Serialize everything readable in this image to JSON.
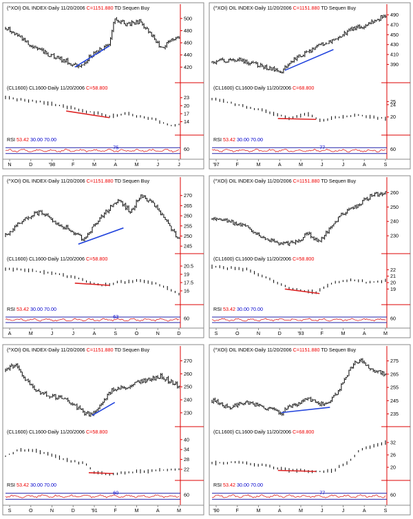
{
  "colors": {
    "price": "#000000",
    "trend_blue": "#2244dd",
    "trend_red": "#dd2222",
    "axis_red": "#dd0000",
    "rsi_line": "#dd2222",
    "rsi_band": "#2222aa",
    "value_red": "#ee0000",
    "rsi_num": "#0000cc",
    "frame": "#888888"
  },
  "chart_data": [
    {
      "type": "line",
      "panel": "top-left",
      "header": {
        "symbol": "(^XOI) OIL INDEX-Daily",
        "date": "11/20/2006",
        "close": "C=1151.880",
        "signal": "TD Sequen Buy"
      },
      "sub_header": {
        "symbol": "(CL1600) CL1600-Daily",
        "date": "11/20/2006",
        "close": "C=58.800"
      },
      "rsi_header": {
        "label": "RSI",
        "value": "53.42",
        "low": "30.00",
        "high": "70.00"
      },
      "rsi_annotation": "75",
      "price": {
        "ylim": [
          400,
          510
        ],
        "ticks": [
          "500",
          "480",
          "460",
          "440",
          "420"
        ],
        "waypoints": [
          [
            0,
            485
          ],
          [
            0.08,
            470
          ],
          [
            0.15,
            455
          ],
          [
            0.25,
            440
          ],
          [
            0.35,
            430
          ],
          [
            0.42,
            420
          ],
          [
            0.5,
            440
          ],
          [
            0.6,
            460
          ],
          [
            0.63,
            500
          ],
          [
            0.7,
            490
          ],
          [
            0.78,
            495
          ],
          [
            0.85,
            470
          ],
          [
            0.9,
            450
          ],
          [
            0.95,
            465
          ],
          [
            1,
            470
          ]
        ]
      },
      "oil": {
        "ylim": [
          10,
          25
        ],
        "ticks": [
          "23",
          "20",
          "17",
          "14"
        ],
        "waypoints": [
          [
            0,
            23
          ],
          [
            0.2,
            21.5
          ],
          [
            0.4,
            19
          ],
          [
            0.6,
            16
          ],
          [
            0.7,
            17
          ],
          [
            0.85,
            15
          ],
          [
            0.95,
            12.5
          ],
          [
            1,
            13
          ]
        ]
      },
      "rsi": {
        "ylim": [
          0,
          100
        ],
        "ticks": [
          "60"
        ]
      },
      "x_ticks": [
        "N",
        "D",
        "'98",
        "F",
        "M",
        "A",
        "M",
        "J",
        "J"
      ],
      "blue_line": [
        [
          0.4,
          420
        ],
        [
          0.6,
          455
        ]
      ],
      "red_line": [
        [
          0.35,
          18
        ],
        [
          0.6,
          15.5
        ]
      ]
    },
    {
      "type": "line",
      "panel": "top-right",
      "header": {
        "symbol": "(^XOI) OIL INDEX-Daily",
        "date": "11/20/2006",
        "close": "C=1151.880",
        "signal": "TD Sequen Buy"
      },
      "sub_header": {
        "symbol": "(CL1600) CL1600-Daily",
        "date": "11/20/2006",
        "close": "C=68.800"
      },
      "rsi_header": {
        "label": "RSI",
        "value": "53.42",
        "low": "30.00",
        "high": "70.00"
      },
      "rsi_annotation": "77",
      "price": {
        "ylim": [
          360,
          495
        ],
        "ticks": [
          "490",
          "470",
          "450",
          "430",
          "410",
          "390"
        ],
        "waypoints": [
          [
            0,
            395
          ],
          [
            0.15,
            400
          ],
          [
            0.3,
            385
          ],
          [
            0.4,
            375
          ],
          [
            0.45,
            395
          ],
          [
            0.6,
            425
          ],
          [
            0.7,
            440
          ],
          [
            0.8,
            460
          ],
          [
            0.9,
            470
          ],
          [
            1,
            490
          ]
        ]
      },
      "oil": {
        "ylim": [
          15,
          28
        ],
        "ticks": [
          "25",
          "24",
          "20"
        ],
        "waypoints": [
          [
            0,
            26
          ],
          [
            0.15,
            24
          ],
          [
            0.3,
            22
          ],
          [
            0.45,
            19.5
          ],
          [
            0.55,
            21
          ],
          [
            0.62,
            19
          ],
          [
            0.75,
            20
          ],
          [
            0.85,
            20.5
          ],
          [
            1,
            19.5
          ]
        ]
      },
      "rsi": {
        "ylim": [
          0,
          100
        ],
        "ticks": [
          "60"
        ]
      },
      "x_ticks": [
        "'97",
        "F",
        "M",
        "A",
        "M",
        "J",
        "J",
        "A",
        "S"
      ],
      "blue_line": [
        [
          0.42,
          378
        ],
        [
          0.7,
          420
        ]
      ],
      "red_line": [
        [
          0.38,
          19.5
        ],
        [
          0.6,
          19.2
        ]
      ]
    },
    {
      "type": "line",
      "panel": "middle-left",
      "header": {
        "symbol": "(^XOI) OIL INDEX-Daily",
        "date": "11/20/2006",
        "close": "C=1151.880",
        "signal": "TD Sequen Buy"
      },
      "sub_header": {
        "symbol": "(CL1600) CL1600-Daily",
        "date": "11/20/2006",
        "close": "C=58.800"
      },
      "rsi_header": {
        "label": "RSI",
        "value": "53.42",
        "low": "30.00",
        "high": "70.00"
      },
      "rsi_annotation": "63",
      "price": {
        "ylim": [
          243,
          275
        ],
        "ticks": [
          "270",
          "265",
          "260",
          "255",
          "250",
          "245"
        ],
        "waypoints": [
          [
            0,
            250
          ],
          [
            0.1,
            258
          ],
          [
            0.2,
            262
          ],
          [
            0.3,
            256
          ],
          [
            0.38,
            253
          ],
          [
            0.45,
            248
          ],
          [
            0.52,
            256
          ],
          [
            0.58,
            262
          ],
          [
            0.65,
            268
          ],
          [
            0.72,
            262
          ],
          [
            0.78,
            270
          ],
          [
            0.85,
            266
          ],
          [
            0.92,
            258
          ],
          [
            1,
            248
          ]
        ]
      },
      "oil": {
        "ylim": [
          14,
          21
        ],
        "ticks": [
          "20.5",
          "19",
          "17.5",
          "16"
        ],
        "waypoints": [
          [
            0,
            20
          ],
          [
            0.2,
            19.5
          ],
          [
            0.4,
            18.5
          ],
          [
            0.55,
            17
          ],
          [
            0.65,
            17.5
          ],
          [
            0.78,
            18
          ],
          [
            0.9,
            17
          ],
          [
            1,
            15.5
          ]
        ]
      },
      "rsi": {
        "ylim": [
          0,
          100
        ],
        "ticks": [
          "60"
        ]
      },
      "x_ticks": [
        "A",
        "M",
        "J",
        "J",
        "A",
        "S",
        "O",
        "N",
        "D"
      ],
      "blue_line": [
        [
          0.42,
          246
        ],
        [
          0.68,
          254
        ]
      ],
      "red_line": [
        [
          0.4,
          17.4
        ],
        [
          0.6,
          17
        ]
      ]
    },
    {
      "type": "line",
      "panel": "middle-right",
      "header": {
        "symbol": "(^XOI) OIL INDEX-Daily",
        "date": "11/20/2006",
        "close": "C=1151.880",
        "signal": "TD Sequen Buy"
      },
      "sub_header": {
        "symbol": "(CL1600) CL1600-Daily",
        "date": "11/20/2006",
        "close": "C=58.800"
      },
      "rsi_header": {
        "label": "RSI",
        "value": "53.42",
        "low": "30.00",
        "high": "70.00"
      },
      "rsi_annotation": "",
      "price": {
        "ylim": [
          220,
          265
        ],
        "ticks": [
          "260",
          "250",
          "240",
          "230"
        ],
        "waypoints": [
          [
            0,
            242
          ],
          [
            0.1,
            240
          ],
          [
            0.2,
            236
          ],
          [
            0.3,
            228
          ],
          [
            0.4,
            224
          ],
          [
            0.5,
            226
          ],
          [
            0.55,
            232
          ],
          [
            0.62,
            226
          ],
          [
            0.68,
            235
          ],
          [
            0.75,
            245
          ],
          [
            0.85,
            252
          ],
          [
            0.92,
            258
          ],
          [
            1,
            260
          ]
        ]
      },
      "oil": {
        "ylim": [
          17,
          23
        ],
        "ticks": [
          "22",
          "21",
          "20",
          "19"
        ],
        "waypoints": [
          [
            0,
            22.5
          ],
          [
            0.2,
            22
          ],
          [
            0.3,
            21
          ],
          [
            0.45,
            19
          ],
          [
            0.6,
            18.5
          ],
          [
            0.7,
            20
          ],
          [
            0.8,
            20.5
          ],
          [
            0.9,
            20
          ],
          [
            1,
            20.3
          ]
        ]
      },
      "rsi": {
        "ylim": [
          0,
          100
        ],
        "ticks": [
          "60"
        ]
      },
      "x_ticks": [
        "S",
        "O",
        "N",
        "D",
        "'93",
        "F",
        "M",
        "A",
        "M"
      ],
      "blue_line": null,
      "red_line": [
        [
          0.42,
          19
        ],
        [
          0.62,
          18.3
        ]
      ]
    },
    {
      "type": "line",
      "panel": "bottom-left",
      "header": {
        "symbol": "(^XOI) OIL INDEX-Daily",
        "date": "11/20/2006",
        "close": "C=1151.880",
        "signal": "TD Sequen Buy"
      },
      "sub_header": {
        "symbol": "(CL1600) CL1600-Daily",
        "date": "11/20/2006",
        "close": "C=58.800"
      },
      "rsi_header": {
        "label": "RSI",
        "value": "53.42",
        "low": "30.00",
        "high": "70.00"
      },
      "rsi_annotation": "60",
      "price": {
        "ylim": [
          222,
          275
        ],
        "ticks": [
          "270",
          "260",
          "250",
          "240",
          "230"
        ],
        "waypoints": [
          [
            0,
            262
          ],
          [
            0.06,
            268
          ],
          [
            0.12,
            255
          ],
          [
            0.2,
            245
          ],
          [
            0.3,
            242
          ],
          [
            0.38,
            238
          ],
          [
            0.45,
            230
          ],
          [
            0.5,
            228
          ],
          [
            0.56,
            238
          ],
          [
            0.62,
            248
          ],
          [
            0.7,
            250
          ],
          [
            0.8,
            255
          ],
          [
            0.9,
            258
          ],
          [
            1,
            250
          ]
        ]
      },
      "oil": {
        "ylim": [
          17,
          42
        ],
        "ticks": [
          "40",
          "34",
          "28",
          "22"
        ],
        "waypoints": [
          [
            0,
            30
          ],
          [
            0.08,
            34
          ],
          [
            0.18,
            33
          ],
          [
            0.28,
            30
          ],
          [
            0.38,
            27
          ],
          [
            0.48,
            25
          ],
          [
            0.5,
            20
          ],
          [
            0.6,
            19
          ],
          [
            0.75,
            20.5
          ],
          [
            0.9,
            21.5
          ],
          [
            1,
            22
          ]
        ]
      },
      "rsi": {
        "ylim": [
          0,
          100
        ],
        "ticks": [
          "60"
        ]
      },
      "x_ticks": [
        "S",
        "O",
        "N",
        "D",
        "'91",
        "F",
        "M",
        "A",
        "M"
      ],
      "blue_line": [
        [
          0.5,
          228
        ],
        [
          0.63,
          238
        ]
      ],
      "red_line": [
        [
          0.48,
          20
        ],
        [
          0.62,
          19.5
        ]
      ]
    },
    {
      "type": "line",
      "panel": "bottom-right",
      "header": {
        "symbol": "(^XOI) OIL INDEX-Daily",
        "date": "11/20/2006",
        "close": "C=1151.880",
        "signal": "TD Sequen Buy"
      },
      "sub_header": {
        "symbol": "(CL1600) CL1600-Daily",
        "date": "11/20/2006",
        "close": "C=68.800"
      },
      "rsi_header": {
        "label": "RSI",
        "value": "53.42",
        "low": "30.00",
        "high": "70.00"
      },
      "rsi_annotation": "77",
      "price": {
        "ylim": [
          228,
          280
        ],
        "ticks": [
          "275",
          "265",
          "255",
          "245",
          "235"
        ],
        "waypoints": [
          [
            0,
            245
          ],
          [
            0.1,
            240
          ],
          [
            0.2,
            244
          ],
          [
            0.3,
            240
          ],
          [
            0.4,
            236
          ],
          [
            0.45,
            240
          ],
          [
            0.55,
            246
          ],
          [
            0.65,
            242
          ],
          [
            0.72,
            250
          ],
          [
            0.8,
            270
          ],
          [
            0.85,
            276
          ],
          [
            0.92,
            268
          ],
          [
            1,
            265
          ]
        ]
      },
      "oil": {
        "ylim": [
          15,
          35
        ],
        "ticks": [
          "32",
          "26",
          "20"
        ],
        "waypoints": [
          [
            0,
            22
          ],
          [
            0.15,
            22.5
          ],
          [
            0.3,
            21
          ],
          [
            0.45,
            18.5
          ],
          [
            0.6,
            18
          ],
          [
            0.7,
            18.5
          ],
          [
            0.78,
            22
          ],
          [
            0.85,
            28
          ],
          [
            0.95,
            31
          ],
          [
            1,
            32
          ]
        ]
      },
      "rsi": {
        "ylim": [
          0,
          100
        ],
        "ticks": [
          "60"
        ]
      },
      "x_ticks": [
        "'90",
        "F",
        "M",
        "A",
        "M",
        "J",
        "J",
        "A",
        "S"
      ],
      "blue_line": [
        [
          0.4,
          236
        ],
        [
          0.68,
          240
        ]
      ],
      "red_line": [
        [
          0.38,
          18.5
        ],
        [
          0.6,
          18
        ]
      ]
    }
  ]
}
